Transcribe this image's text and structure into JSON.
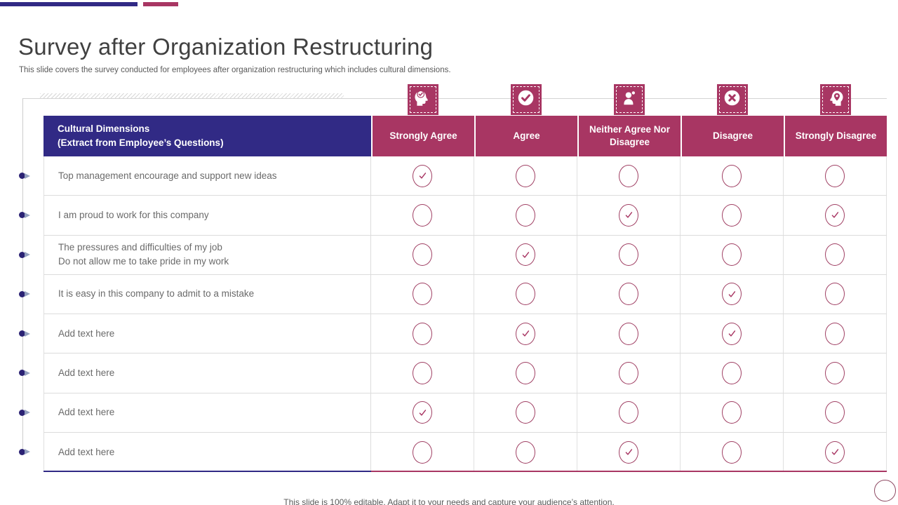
{
  "slide": {
    "title": "Survey after Organization Restructuring",
    "subtitle": "This slide covers the survey conducted for employees after organization restructuring which includes cultural dimensions.",
    "footer": "This slide is 100% editable. Adapt it to your needs and capture your audience’s attention."
  },
  "colors": {
    "topbar_blue": "#312782",
    "topbar_pink": "#A73561",
    "navy": "#312A85",
    "magenta": "#A83663",
    "radio_outline": "#A04064",
    "body_text": "#6a6a6a"
  },
  "table": {
    "dimension_line1": "Cultural Dimensions",
    "dimension_line2": "(Extract from Employee’s Questions)",
    "columns": [
      {
        "label": "Strongly Agree",
        "icon": "head-check-icon"
      },
      {
        "label": "Agree",
        "icon": "check-circle-icon"
      },
      {
        "label": "Neither Agree Nor Disagree",
        "icon": "person-icon"
      },
      {
        "label": "Disagree",
        "icon": "x-circle-icon"
      },
      {
        "label": "Strongly Disagree",
        "icon": "head-pin-icon"
      }
    ],
    "rows": [
      {
        "question": "Top management encourage and support new ideas",
        "answers": [
          true,
          false,
          false,
          false,
          false
        ]
      },
      {
        "question": "I am proud to work for this company",
        "answers": [
          false,
          false,
          true,
          false,
          true
        ]
      },
      {
        "question": "The pressures and difficulties of my job\nDo not allow me to take pride in my work",
        "answers": [
          false,
          true,
          false,
          false,
          false
        ]
      },
      {
        "question": "It is easy in this company to admit to a mistake",
        "answers": [
          false,
          false,
          false,
          true,
          false
        ]
      },
      {
        "question": "Add text here",
        "answers": [
          false,
          true,
          false,
          true,
          false
        ]
      },
      {
        "question": "Add text here",
        "answers": [
          false,
          false,
          false,
          false,
          false
        ]
      },
      {
        "question": "Add text here",
        "answers": [
          true,
          false,
          false,
          false,
          false
        ]
      },
      {
        "question": "Add text here",
        "answers": [
          false,
          false,
          true,
          false,
          true
        ]
      }
    ]
  }
}
